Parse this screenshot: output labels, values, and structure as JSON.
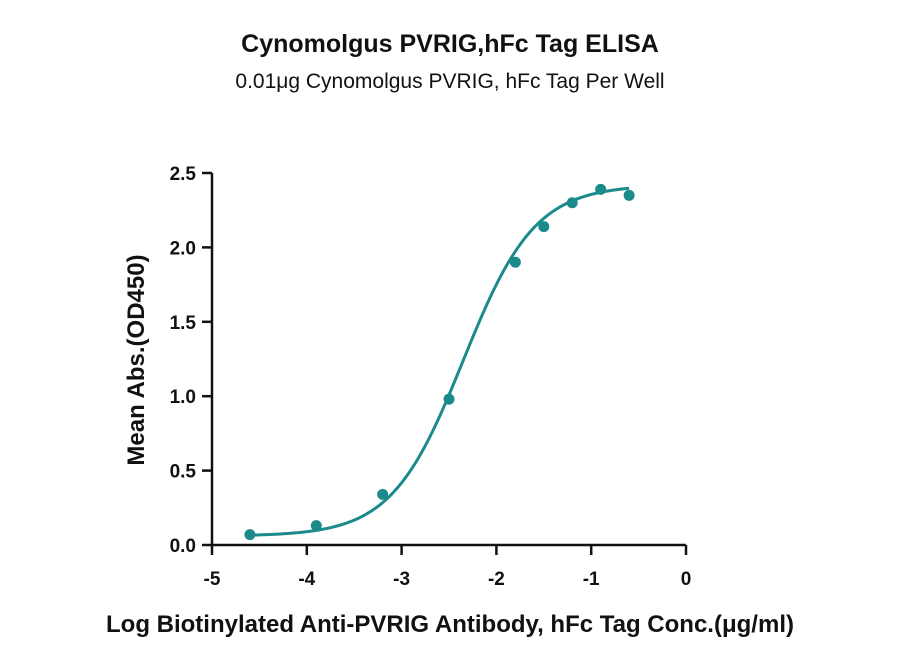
{
  "chart_data": {
    "type": "scatter",
    "title": "Cynomolgus PVRIG,hFc Tag ELISA",
    "subtitle": "0.01μg Cynomolgus PVRIG, hFc Tag Per Well",
    "xlabel": "Log Biotinylated Anti-PVRIG Antibody, hFc Tag Conc.(μg/ml)",
    "ylabel": "Mean Abs.(OD450)",
    "xlim": [
      -5,
      0
    ],
    "ylim": [
      0,
      2.5
    ],
    "xticks": [
      "-5",
      "-4",
      "-3",
      "-2",
      "-1",
      "0"
    ],
    "yticks": [
      "0.0",
      "0.5",
      "1.0",
      "1.5",
      "2.0",
      "2.5"
    ],
    "grid": false,
    "series": [
      {
        "points_x": [
          -4.6,
          -3.9,
          -3.2,
          -2.5,
          -1.8,
          -1.5,
          -1.2,
          -0.9,
          -0.6
        ],
        "points_y": [
          0.07,
          0.13,
          0.34,
          0.98,
          1.9,
          2.14,
          2.3,
          2.39,
          2.35
        ],
        "fit": {
          "model": "4PL sigmoid",
          "bottom": 0.06,
          "top": 2.42,
          "log_ec50": -2.35,
          "hill": 1.15,
          "x_range": [
            -4.6,
            -0.6
          ]
        },
        "color": "#1b8a8a"
      }
    ]
  }
}
